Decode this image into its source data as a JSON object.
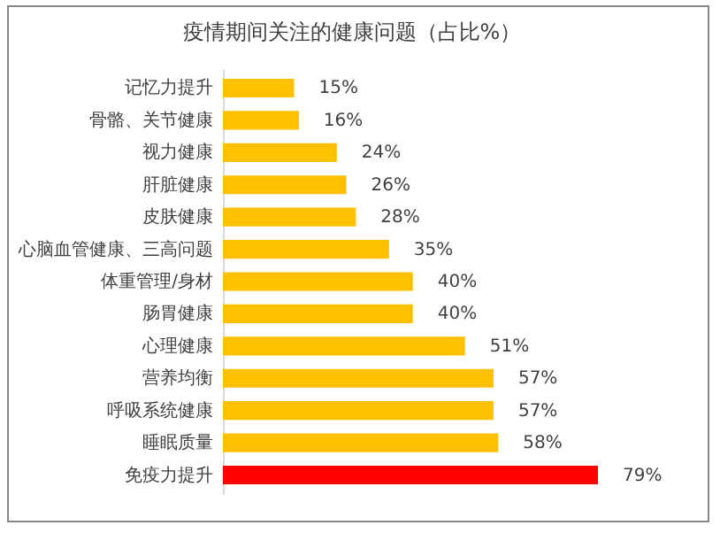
{
  "chart_data": {
    "type": "bar",
    "orientation": "horizontal",
    "title": "疫情期间关注的健康问题（占比%）",
    "categories": [
      "记忆力提升",
      "骨骼、关节健康",
      "视力健康",
      "肝脏健康",
      "皮肤健康",
      "心脑血管健康、三高问题",
      "体重管理/身材",
      "肠胃健康",
      "心理健康",
      "营养均衡",
      "呼吸系统健康",
      "睡眠质量",
      "免疫力提升"
    ],
    "values": [
      15,
      16,
      24,
      26,
      28,
      35,
      40,
      40,
      51,
      57,
      57,
      58,
      79
    ],
    "value_labels": [
      "15%",
      "16%",
      "24%",
      "26%",
      "28%",
      "35%",
      "40%",
      "40%",
      "51%",
      "57%",
      "57%",
      "58%",
      "79%"
    ],
    "colors": [
      "#ffc000",
      "#ffc000",
      "#ffc000",
      "#ffc000",
      "#ffc000",
      "#ffc000",
      "#ffc000",
      "#ffc000",
      "#ffc000",
      "#ffc000",
      "#ffc000",
      "#ffc000",
      "#ff0000"
    ],
    "data_labels": false
  }
}
